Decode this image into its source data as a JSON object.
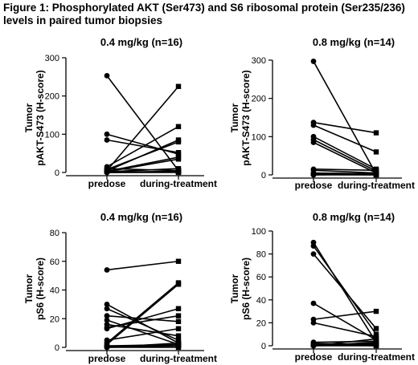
{
  "figure": {
    "title_line1": "Figure 1: Phosphorylated AKT (Ser473) and S6 ribosomal protein (Ser235/236)",
    "title_line2": "levels in paired tumor biopsies"
  },
  "chart_data": [
    {
      "type": "line",
      "title": "0.4 mg/kg (n=16)",
      "ylabel_line1": "Tumor",
      "ylabel_line2": "pAKT-S473 (H-score)",
      "categories": [
        "predose",
        "during-treatment"
      ],
      "ylim": [
        0,
        300
      ],
      "yticks": [
        0,
        100,
        200,
        300
      ],
      "markers": [
        "circle",
        "square"
      ],
      "pairs": [
        [
          253,
          5
        ],
        [
          100,
          48
        ],
        [
          85,
          52
        ],
        [
          15,
          120
        ],
        [
          10,
          5
        ],
        [
          8,
          80
        ],
        [
          5,
          225
        ],
        [
          4,
          85
        ],
        [
          3,
          40
        ],
        [
          2,
          35
        ],
        [
          2,
          10
        ],
        [
          1,
          3
        ],
        [
          1,
          2
        ],
        [
          0,
          1
        ],
        [
          0,
          0
        ],
        [
          0,
          2
        ]
      ]
    },
    {
      "type": "line",
      "title": "0.8 mg/kg (n=14)",
      "ylabel_line1": "Tumor",
      "ylabel_line2": "pAKT-S473 (H-score)",
      "categories": [
        "predose",
        "during-treatment"
      ],
      "ylim": [
        0,
        300
      ],
      "yticks": [
        0,
        100,
        200,
        300
      ],
      "markers": [
        "circle",
        "square"
      ],
      "pairs": [
        [
          297,
          2
        ],
        [
          137,
          110
        ],
        [
          130,
          60
        ],
        [
          100,
          15
        ],
        [
          92,
          10
        ],
        [
          85,
          5
        ],
        [
          15,
          12
        ],
        [
          12,
          5
        ],
        [
          5,
          3
        ],
        [
          3,
          2
        ],
        [
          2,
          1
        ],
        [
          1,
          0
        ],
        [
          0,
          0
        ],
        [
          0,
          2
        ]
      ]
    },
    {
      "type": "line",
      "title": "0.4 mg/kg (n=16)",
      "ylabel_line1": "Tumor",
      "ylabel_line2": "pS6 (H-score)",
      "categories": [
        "predose",
        "during-treatment"
      ],
      "ylim": [
        0,
        80
      ],
      "yticks": [
        0,
        20,
        40,
        60,
        80
      ],
      "markers": [
        "circle",
        "square"
      ],
      "pairs": [
        [
          54,
          60
        ],
        [
          30,
          3
        ],
        [
          27,
          5
        ],
        [
          22,
          18
        ],
        [
          19,
          2
        ],
        [
          16,
          8
        ],
        [
          14,
          22
        ],
        [
          13,
          27
        ],
        [
          5,
          13
        ],
        [
          3,
          45
        ],
        [
          2,
          44
        ],
        [
          1,
          2
        ],
        [
          1,
          1
        ],
        [
          0,
          0
        ],
        [
          0,
          3
        ],
        [
          0,
          1
        ]
      ]
    },
    {
      "type": "line",
      "title": "0.8 mg/kg (n=14)",
      "ylabel_line1": "Tumor",
      "ylabel_line2": "pS6 (H-score)",
      "categories": [
        "predose",
        "during-treatment"
      ],
      "ylim": [
        0,
        100
      ],
      "yticks": [
        0,
        20,
        40,
        60,
        80,
        100
      ],
      "markers": [
        "circle",
        "square"
      ],
      "pairs": [
        [
          90,
          3
        ],
        [
          87,
          10
        ],
        [
          80,
          15
        ],
        [
          37,
          5
        ],
        [
          23,
          30
        ],
        [
          20,
          8
        ],
        [
          3,
          4
        ],
        [
          2,
          1
        ],
        [
          1,
          0
        ],
        [
          1,
          2
        ],
        [
          0,
          0
        ],
        [
          0,
          1
        ],
        [
          0,
          3
        ],
        [
          0,
          6
        ]
      ]
    }
  ]
}
